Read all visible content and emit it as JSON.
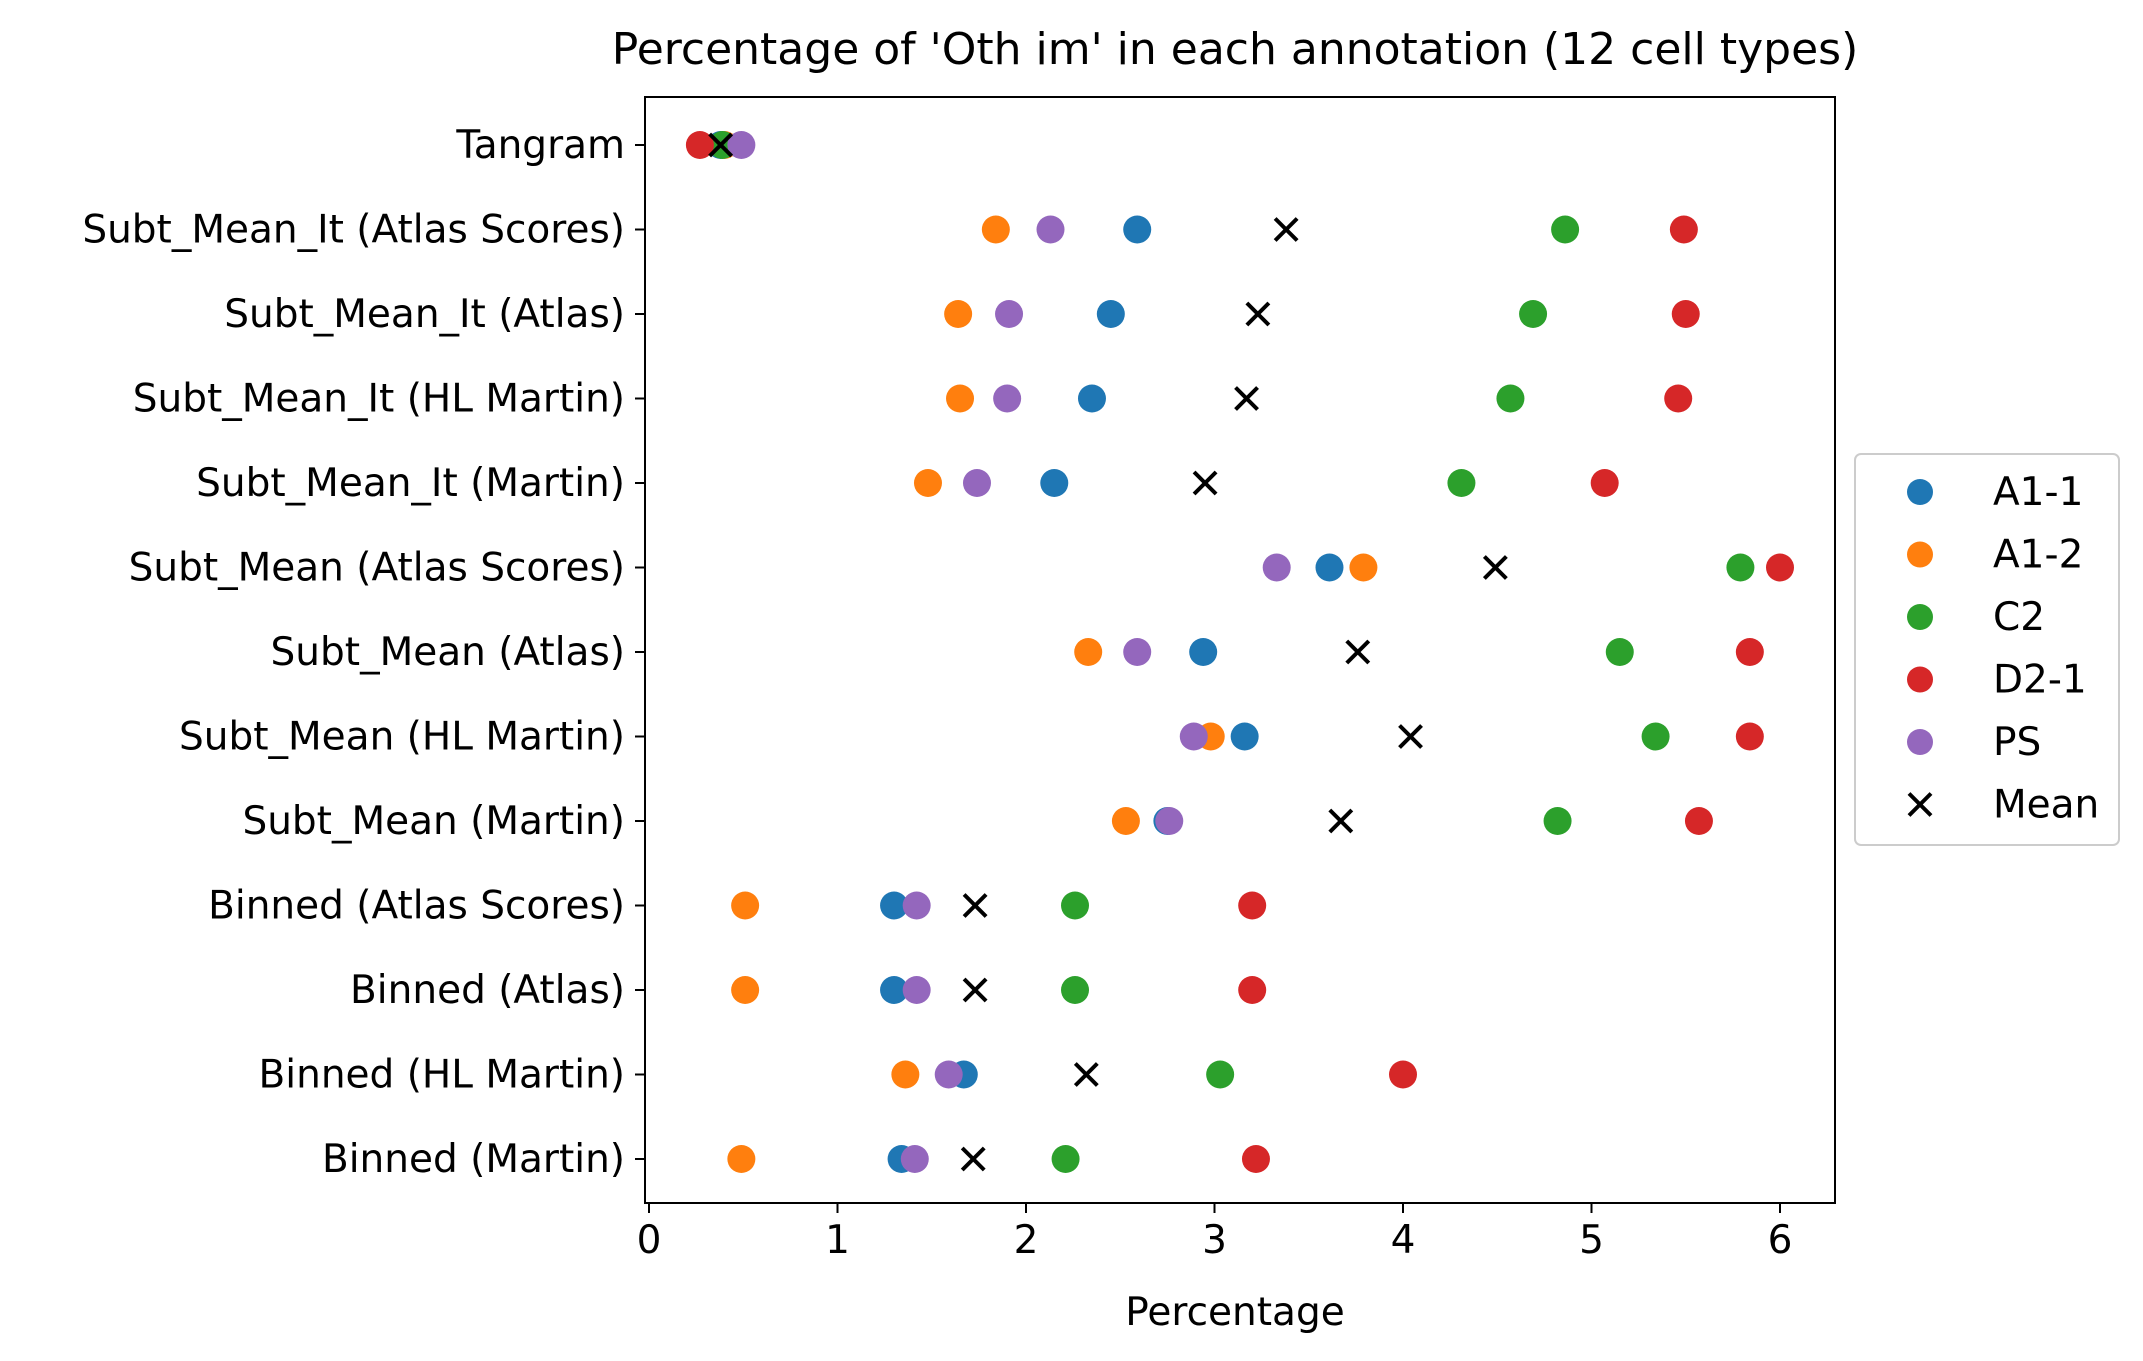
{
  "chart_data": {
    "type": "scatter",
    "title": "Percentage of 'Oth im' in each annotation (12 cell types)",
    "xlabel": "Percentage",
    "ylabel": "",
    "xlim": [
      0,
      6.25
    ],
    "xticks": [
      0,
      1,
      2,
      3,
      4,
      5,
      6
    ],
    "grid": false,
    "legend_position": "center-right-outside",
    "categories": [
      "Tangram",
      "Subt_Mean_It (Atlas Scores)",
      "Subt_Mean_It (Atlas)",
      "Subt_Mean_It (HL Martin)",
      "Subt_Mean_It (Martin)",
      "Subt_Mean (Atlas Scores)",
      "Subt_Mean (Atlas)",
      "Subt_Mean (HL Martin)",
      "Subt_Mean (Martin)",
      "Binned (Atlas Scores)",
      "Binned (Atlas)",
      "Binned (HL Martin)",
      "Binned (Martin)"
    ],
    "series": [
      {
        "name": "A1-1",
        "color": "#1f77b4",
        "marker": "circle",
        "values": [
          0.38,
          2.59,
          2.45,
          2.35,
          2.15,
          3.61,
          2.94,
          3.16,
          2.75,
          1.3,
          1.3,
          1.67,
          1.34
        ]
      },
      {
        "name": "A1-2",
        "color": "#ff7f0e",
        "marker": "circle",
        "values": [
          0.4,
          1.84,
          1.64,
          1.65,
          1.48,
          3.79,
          2.33,
          2.98,
          2.53,
          0.51,
          0.51,
          1.36,
          0.49
        ]
      },
      {
        "name": "C2",
        "color": "#2ca02c",
        "marker": "circle",
        "values": [
          0.39,
          4.86,
          4.69,
          4.57,
          4.31,
          5.79,
          5.15,
          5.34,
          4.82,
          2.26,
          2.26,
          3.03,
          2.21
        ]
      },
      {
        "name": "D2-1",
        "color": "#d62728",
        "marker": "circle",
        "values": [
          0.27,
          5.49,
          5.5,
          5.46,
          5.07,
          6.0,
          5.84,
          5.84,
          5.57,
          3.2,
          3.2,
          4.0,
          3.22
        ]
      },
      {
        "name": "PS",
        "color": "#9467bd",
        "marker": "circle",
        "values": [
          0.49,
          2.13,
          1.91,
          1.9,
          1.74,
          3.33,
          2.59,
          2.89,
          2.76,
          1.42,
          1.42,
          1.59,
          1.41
        ]
      },
      {
        "name": "Mean",
        "color": "#000000",
        "marker": "x",
        "values": [
          0.38,
          3.38,
          3.23,
          3.17,
          2.95,
          4.49,
          3.76,
          4.04,
          3.67,
          1.73,
          1.73,
          2.32,
          1.72
        ]
      }
    ]
  }
}
